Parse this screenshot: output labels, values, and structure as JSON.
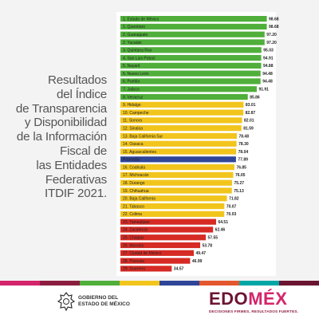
{
  "title_lines": [
    "Resultados",
    "del Índice",
    "de Transparencia",
    "y Disponibilidad",
    "de la Información",
    "Fiscal de",
    "las Entidades",
    "Federativas",
    "ITDIF 2021."
  ],
  "colors": {
    "green": "#4faf3a",
    "yellow": "#f2c51c",
    "red": "#d62b25",
    "average": "#2f4598",
    "brand": "#8c1d40"
  },
  "chart_data": {
    "type": "bar",
    "orientation": "horizontal",
    "xlim": [
      0,
      100
    ],
    "grid": false,
    "categories": [
      "1. Estado de México",
      "1. Querétaro",
      "2. Guanajuato",
      "2. Yucatán",
      "3. Quintana Roo",
      "4. San Luis Potosí",
      "5. Nayarit",
      "6. Nuevo León",
      "6. Puebla",
      "7. Jalisco",
      "8. Veracruz",
      "9. Hidalgo",
      "10. Campeche",
      "11. Sonora",
      "12. Sinaloa",
      "13. Baja California Sur",
      "14. Oaxaca",
      "15. Aguascalientes",
      "Promedio",
      "16. Coahuila",
      "17. Michoacán",
      "18. Durango",
      "19. Chihuahua",
      "20. Baja California",
      "21. Tabasco",
      "22. Colima",
      "23. Tamaulipas",
      "24. Zacatecas",
      "25. Chiapas",
      "26. Morelos",
      "27. Ciudad de México",
      "28. Tlaxcala",
      "29. Guerrero"
    ],
    "values": [
      98.68,
      98.68,
      97.2,
      97.2,
      95.03,
      94.91,
      94.88,
      94.48,
      94.48,
      91.91,
      85.86,
      83.01,
      82.87,
      82.01,
      81.59,
      78.48,
      78.3,
      78.04,
      77.89,
      76.85,
      76.05,
      75.27,
      75.13,
      71.82,
      70.07,
      70.03,
      64.51,
      62.46,
      57.55,
      53.78,
      49.47,
      46.99,
      34.57
    ],
    "value_labels": [
      "98.68",
      "98.68",
      "97.20",
      "97.20",
      "95.03",
      "94.91",
      "94.88",
      "94.48",
      "94.48",
      "91.91",
      "85.86",
      "83.01",
      "82.87",
      "82.01",
      "81.59",
      "78.48",
      "78.30",
      "78.04",
      "77.89",
      "76.85",
      "76.05",
      "75.27",
      "75.13",
      "71.82",
      "70.07",
      "70.03",
      "64.51",
      "62.46",
      "57.55",
      "53.78",
      "49.47",
      "46.99",
      "34.57"
    ],
    "bar_colors": [
      "green",
      "green",
      "green",
      "green",
      "green",
      "green",
      "green",
      "green",
      "green",
      "green",
      "green",
      "yellow",
      "yellow",
      "yellow",
      "yellow",
      "yellow",
      "yellow",
      "yellow",
      "average",
      "yellow",
      "yellow",
      "yellow",
      "yellow",
      "yellow",
      "yellow",
      "yellow",
      "red",
      "red",
      "red",
      "red",
      "red",
      "red",
      "red"
    ]
  },
  "footer": {
    "gov_line1": "GOBIERNO DEL",
    "gov_line2": "ESTADO DE MÉXICO",
    "brand_part1": "EDO",
    "brand_part2": "MÉX",
    "slogan": "DECISIONES FIRMES, RESULTADOS FUERTES.",
    "strip_colors": [
      "#d4246b",
      "#8c1d40",
      "#4faf3a",
      "#f2c51c",
      "#2f4598",
      "#e4572e",
      "#00a6a6",
      "#6b1432"
    ]
  }
}
